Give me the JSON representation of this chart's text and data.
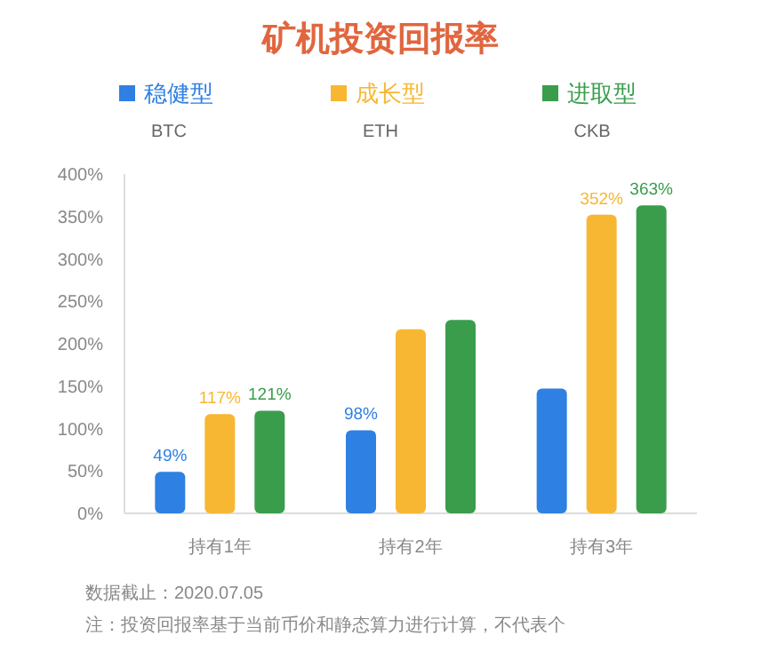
{
  "chart_data": {
    "type": "bar",
    "title": "矿机投资回报率",
    "categories": [
      "持有1年",
      "持有2年",
      "持有3年"
    ],
    "series": [
      {
        "name": "稳健型",
        "color": "#2f80e3",
        "values": [
          49,
          98,
          147
        ],
        "value_labels": [
          "49%",
          "98%",
          null
        ]
      },
      {
        "name": "成长型",
        "color": "#f8b732",
        "values": [
          117,
          217,
          352
        ],
        "value_labels": [
          "117%",
          null,
          "352%"
        ]
      },
      {
        "name": "进取型",
        "color": "#3a9d4c",
        "values": [
          121,
          228,
          363
        ],
        "value_labels": [
          "121%",
          null,
          "363%"
        ]
      }
    ],
    "ylim": [
      0,
      400
    ],
    "yticks": [
      {
        "value": 0,
        "label": "0%"
      },
      {
        "value": 50,
        "label": "50%"
      },
      {
        "value": 100,
        "label": "100%"
      },
      {
        "value": 150,
        "label": "150%"
      },
      {
        "value": 200,
        "label": "200%"
      },
      {
        "value": 250,
        "label": "250%"
      },
      {
        "value": 300,
        "label": "300%"
      },
      {
        "value": 350,
        "label": "350%"
      },
      {
        "value": 400,
        "label": "400%"
      }
    ],
    "legend": "top",
    "annotations": [
      "BTC",
      "ETH",
      "CKB",
      "数据截止：2020.07.05",
      "注：投资回报率基于当前币价和静态算力进行计算，不代表个"
    ]
  }
}
